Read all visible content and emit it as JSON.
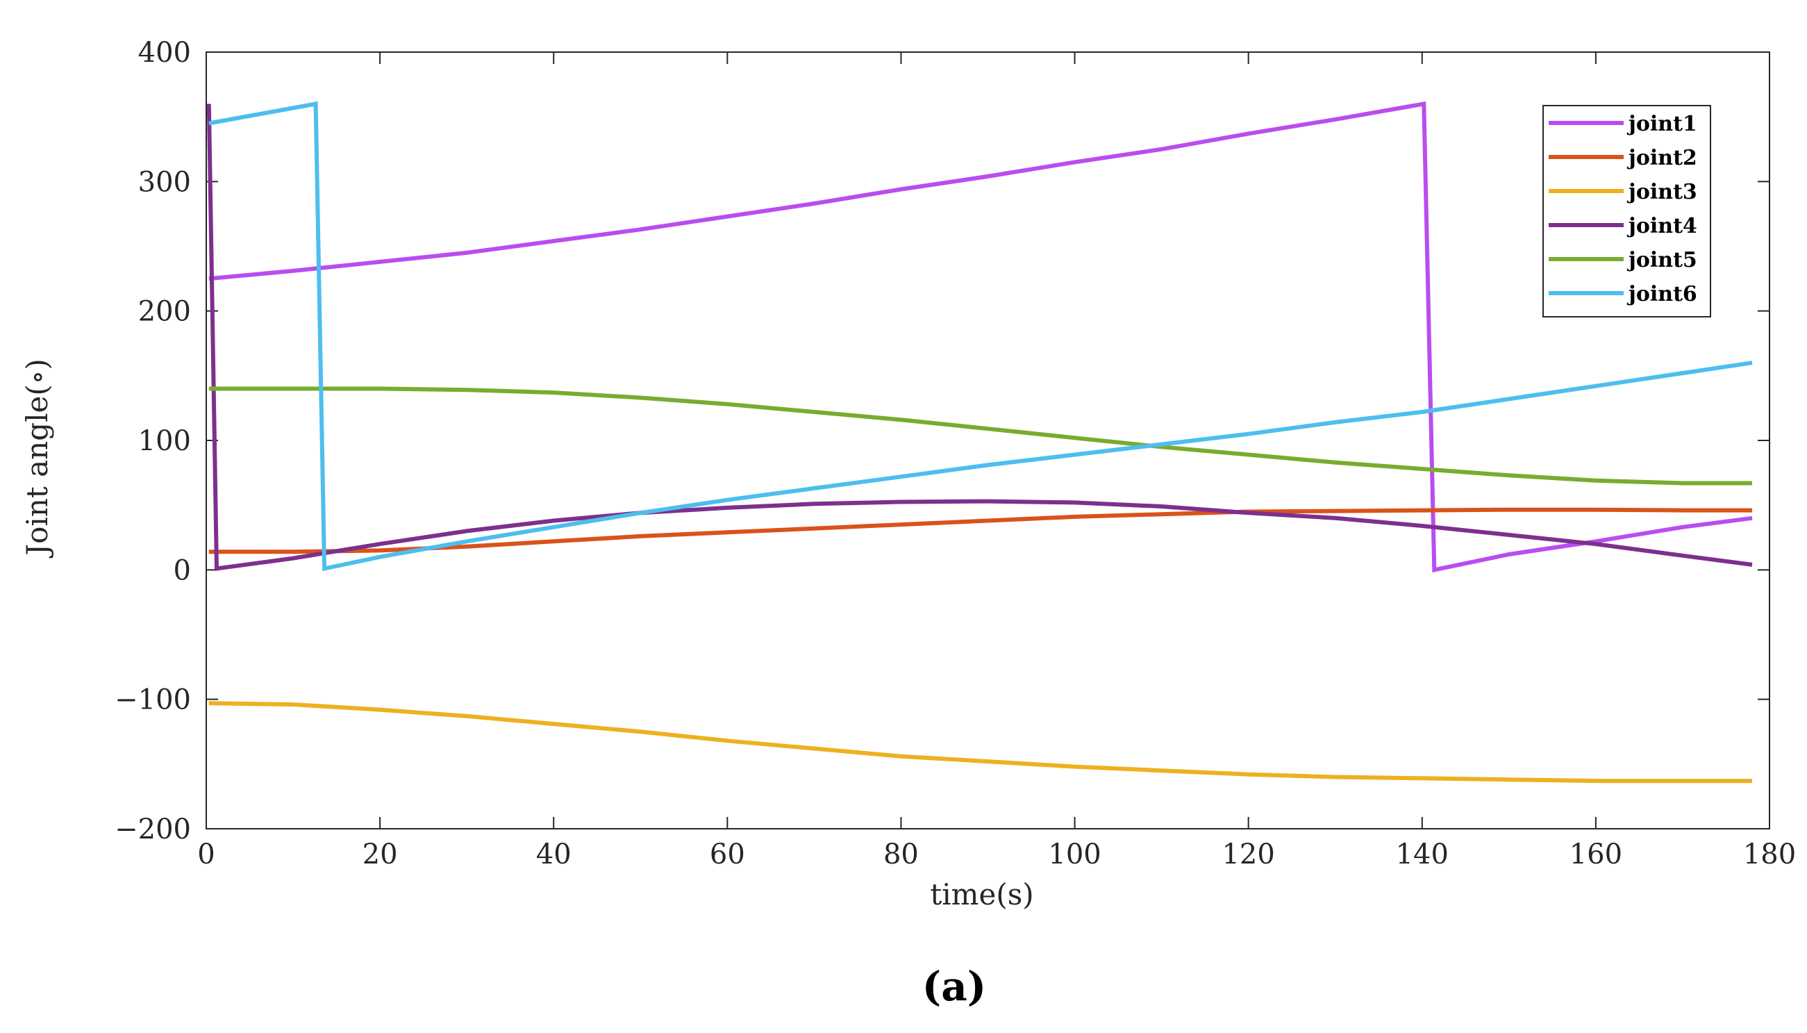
{
  "chart_data": {
    "type": "line",
    "title": "",
    "xlabel": "time(s)",
    "ylabel": "Joint angle(∘)",
    "xlim": [
      0,
      180
    ],
    "ylim": [
      -200,
      400
    ],
    "xticks": [
      0,
      20,
      40,
      60,
      80,
      100,
      120,
      140,
      160,
      180
    ],
    "yticks": [
      -200,
      -100,
      0,
      100,
      200,
      300,
      400
    ],
    "ytick_labels": [
      "−200",
      "−100",
      "0",
      "100",
      "200",
      "300",
      "400"
    ],
    "grid": false,
    "legend_position": "top-right",
    "caption": "(a)",
    "series": [
      {
        "name": "joint1",
        "color": "#b94df0",
        "x": [
          0.3,
          10,
          20,
          30,
          40,
          50,
          60,
          70,
          80,
          90,
          100,
          110,
          120,
          130,
          140.2,
          141.4,
          150,
          160,
          170,
          178
        ],
        "y": [
          225,
          231,
          238,
          245,
          254,
          263,
          273,
          283,
          294,
          304,
          315,
          325,
          337,
          348,
          360,
          0,
          12,
          22,
          33,
          40
        ]
      },
      {
        "name": "joint2",
        "color": "#d95319",
        "x": [
          0.3,
          10,
          20,
          30,
          40,
          50,
          60,
          70,
          80,
          90,
          100,
          110,
          120,
          130,
          140,
          150,
          160,
          170,
          178
        ],
        "y": [
          14,
          14,
          15,
          18,
          22,
          26,
          29,
          32,
          35,
          38,
          41,
          43,
          45,
          45.5,
          46,
          46.5,
          46.5,
          46,
          46
        ]
      },
      {
        "name": "joint3",
        "color": "#edb120",
        "x": [
          0.3,
          10,
          20,
          30,
          40,
          50,
          60,
          70,
          80,
          90,
          100,
          110,
          120,
          130,
          140,
          150,
          160,
          170,
          178
        ],
        "y": [
          -103,
          -104,
          -108,
          -113,
          -119,
          -125,
          -132,
          -138,
          -144,
          -148,
          -152,
          -155,
          -158,
          -160,
          -161,
          -162,
          -163,
          -163,
          -163
        ]
      },
      {
        "name": "joint4",
        "color": "#7e2f8e",
        "x": [
          0.3,
          1.2,
          10,
          20,
          30,
          40,
          50,
          60,
          70,
          80,
          90,
          100,
          110,
          120,
          130,
          140,
          150,
          160,
          170,
          178
        ],
        "y": [
          360,
          1,
          9,
          20,
          30,
          38,
          44,
          48,
          51,
          52.5,
          53,
          52,
          49,
          44,
          40,
          34,
          27,
          20,
          11,
          4
        ]
      },
      {
        "name": "joint5",
        "color": "#77ac30",
        "x": [
          0.3,
          10,
          20,
          30,
          40,
          50,
          60,
          70,
          80,
          90,
          100,
          110,
          120,
          130,
          140,
          150,
          160,
          170,
          178
        ],
        "y": [
          140,
          140,
          140,
          139,
          137,
          133,
          128,
          122,
          116,
          109,
          102,
          95,
          89,
          83,
          78,
          73,
          69,
          67,
          67
        ]
      },
      {
        "name": "joint6",
        "color": "#4dbeee",
        "x": [
          0.3,
          12.6,
          13.6,
          20,
          30,
          40,
          50,
          60,
          70,
          80,
          90,
          100,
          110,
          120,
          130,
          140,
          150,
          160,
          170,
          178
        ],
        "y": [
          345,
          360,
          1,
          10,
          22,
          33,
          44,
          54,
          63,
          72,
          81,
          89,
          97,
          105,
          114,
          122,
          132,
          142,
          152,
          160
        ]
      }
    ]
  }
}
